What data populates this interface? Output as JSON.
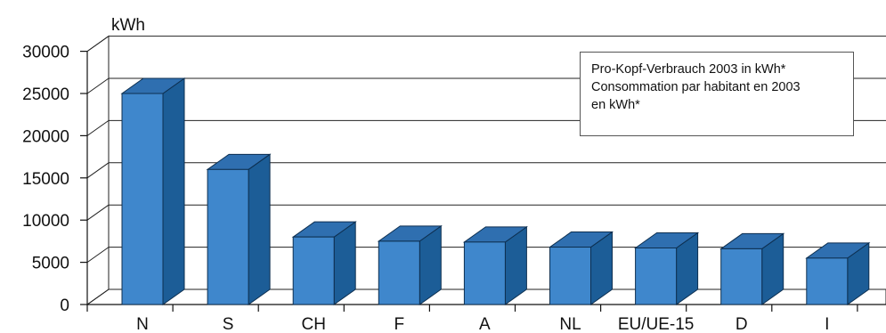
{
  "chart_data": {
    "type": "bar",
    "ylabel": "kWh",
    "ylim": [
      0,
      30000
    ],
    "yticks": [
      0,
      5000,
      10000,
      15000,
      20000,
      25000,
      30000
    ],
    "ytick_labels": [
      "0",
      "5000",
      "10000",
      "15000",
      "20000",
      "25000",
      "30000"
    ],
    "categories": [
      "N",
      "S",
      "CH",
      "F",
      "A",
      "NL",
      "EU/UE-15",
      "D",
      "I"
    ],
    "values": [
      25000,
      16000,
      8000,
      7500,
      7400,
      6800,
      6700,
      6600,
      5500
    ],
    "grid": true,
    "legend_position": "top-right",
    "annotation_lines": [
      "Pro-Kopf-Verbrauch 2003 in kWh*",
      "Consommation par habitant en 2003",
      "en kWh*"
    ],
    "colors": {
      "front": "#3f87cc",
      "top": "#2f6fb0",
      "side": "#1c5d97",
      "edge": "#0d2f50"
    }
  }
}
